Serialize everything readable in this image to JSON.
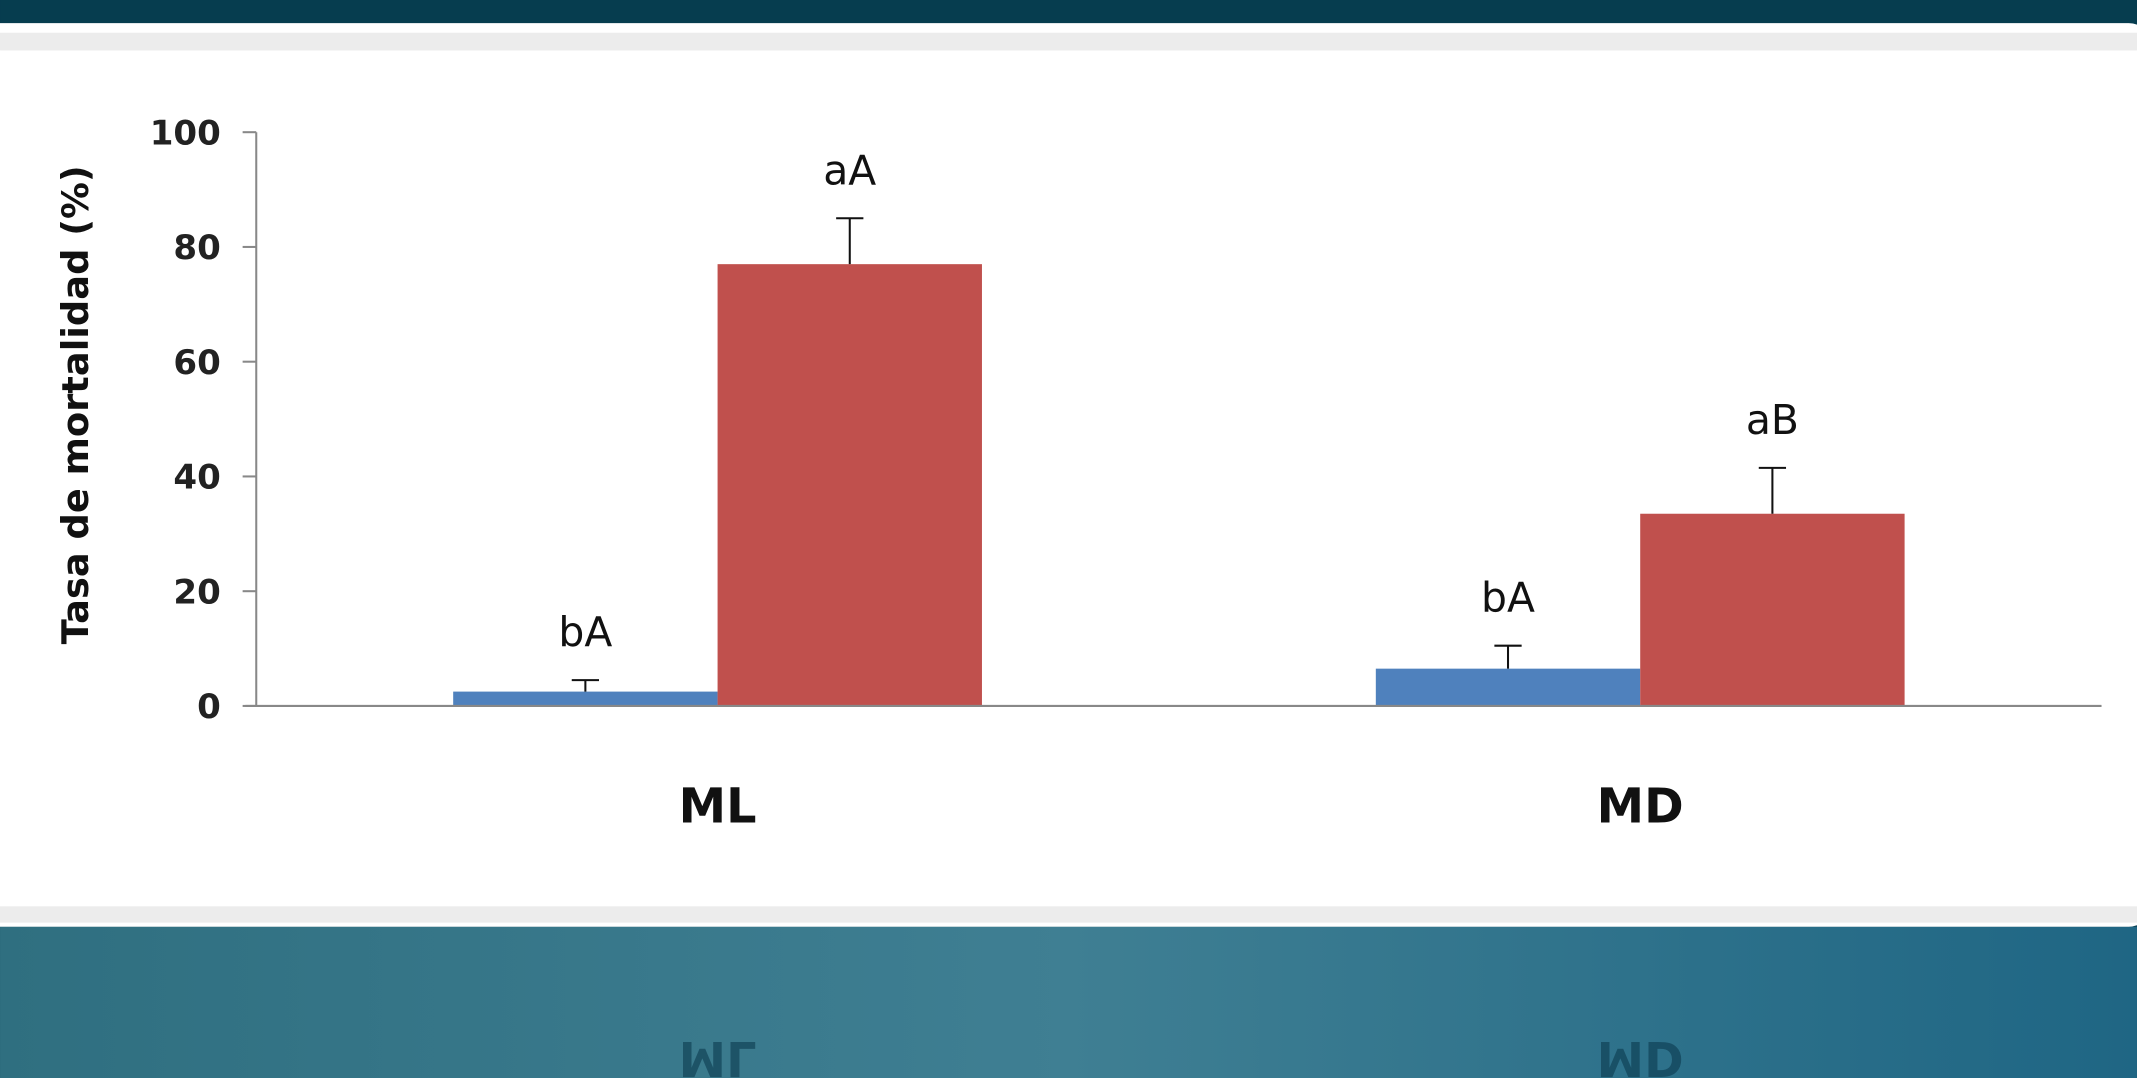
{
  "chart_data": {
    "type": "bar",
    "y_label": "Tasa de mortalidad (%)",
    "categories": [
      "ML",
      "MD"
    ],
    "series": [
      {
        "color": "#4f81bd",
        "values": [
          2.5,
          6.5
        ],
        "errors": [
          2,
          4
        ],
        "value_labels": [
          "bA",
          "bA"
        ]
      },
      {
        "color": "#c0504d",
        "values": [
          77,
          33.5
        ],
        "errors": [
          8,
          8
        ],
        "value_labels": [
          "aA",
          "aB"
        ]
      }
    ],
    "ylim": [
      0,
      100
    ],
    "yticks": [
      0,
      20,
      40,
      60,
      80,
      100
    ]
  }
}
